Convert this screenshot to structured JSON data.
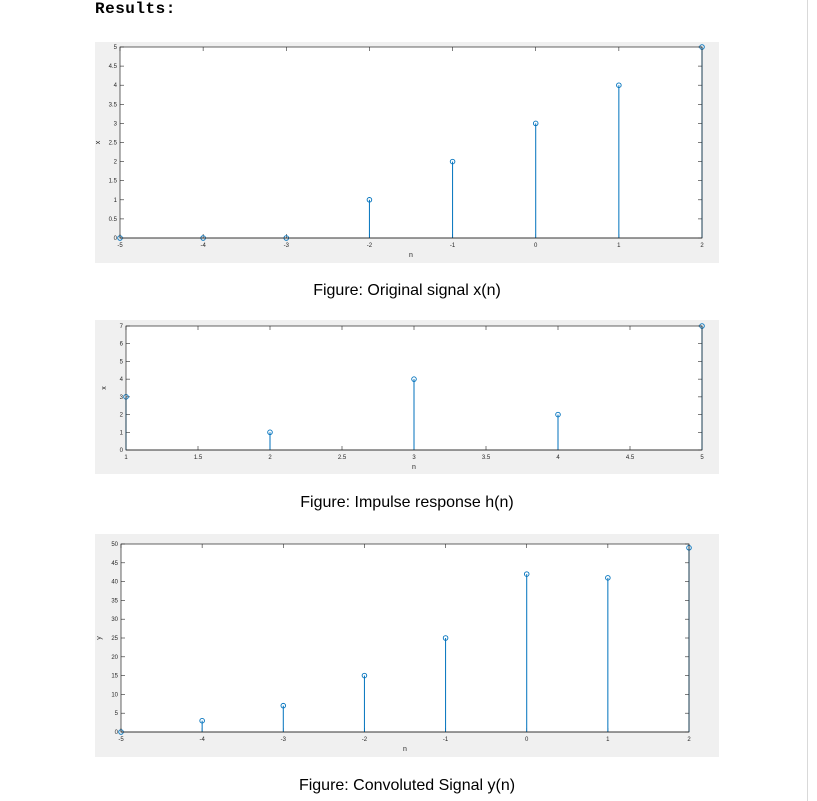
{
  "heading": "Results:",
  "colors": {
    "stem": "#0072bd",
    "axis": "#262626",
    "figure_bg": "#f0f0f0",
    "plot_bg": "#ffffff"
  },
  "chart_data": [
    {
      "type": "stem",
      "caption": "Figure: Original signal x(n)",
      "xlabel": "n",
      "ylabel": "x",
      "xlim": [
        -5,
        2
      ],
      "ylim": [
        0,
        5
      ],
      "xticks": [
        -5,
        -4,
        -3,
        -2,
        -1,
        0,
        1,
        2
      ],
      "xtick_labels": [
        "-5",
        "-4",
        "-3",
        "-2",
        "-1",
        "0",
        "1",
        "2"
      ],
      "yticks": [
        0,
        0.5,
        1,
        1.5,
        2,
        2.5,
        3,
        3.5,
        4,
        4.5,
        5
      ],
      "ytick_labels": [
        "0",
        "0.5",
        "1",
        "1.5",
        "2",
        "2.5",
        "3",
        "3.5",
        "4",
        "4.5",
        "5"
      ],
      "x": [
        -5,
        -4,
        -3,
        -2,
        -1,
        0,
        1,
        2
      ],
      "y": [
        0,
        0,
        0,
        1,
        2,
        3,
        4,
        5
      ],
      "grid": false
    },
    {
      "type": "stem",
      "caption": "Figure: Impulse response h(n)",
      "xlabel": "n",
      "ylabel": "x",
      "xlim": [
        1,
        5
      ],
      "ylim": [
        0,
        7
      ],
      "xticks": [
        1,
        1.5,
        2,
        2.5,
        3,
        3.5,
        4,
        4.5,
        5
      ],
      "xtick_labels": [
        "1",
        "1.5",
        "2",
        "2.5",
        "3",
        "3.5",
        "4",
        "4.5",
        "5"
      ],
      "yticks": [
        0,
        1,
        2,
        3,
        4,
        5,
        6,
        7
      ],
      "ytick_labels": [
        "0",
        "1",
        "2",
        "3",
        "4",
        "5",
        "6",
        "7"
      ],
      "x": [
        1,
        2,
        3,
        4,
        5
      ],
      "y": [
        3,
        1,
        4,
        2,
        7
      ],
      "grid": false
    },
    {
      "type": "stem",
      "caption": "Figure: Convoluted Signal y(n)",
      "xlabel": "n",
      "ylabel": "y",
      "xlim": [
        -5,
        2
      ],
      "ylim": [
        0,
        50
      ],
      "xticks": [
        -5,
        -4,
        -3,
        -2,
        -1,
        0,
        1,
        2
      ],
      "xtick_labels": [
        "-5",
        "-4",
        "-3",
        "-2",
        "-1",
        "0",
        "1",
        "2"
      ],
      "yticks": [
        0,
        5,
        10,
        15,
        20,
        25,
        30,
        35,
        40,
        45,
        50
      ],
      "ytick_labels": [
        "0",
        "5",
        "10",
        "15",
        "20",
        "25",
        "30",
        "35",
        "40",
        "45",
        "50"
      ],
      "x": [
        -5,
        -4,
        -3,
        -2,
        -1,
        0,
        1,
        2
      ],
      "y": [
        0,
        3,
        7,
        15,
        25,
        42,
        41,
        49
      ],
      "grid": false
    }
  ]
}
